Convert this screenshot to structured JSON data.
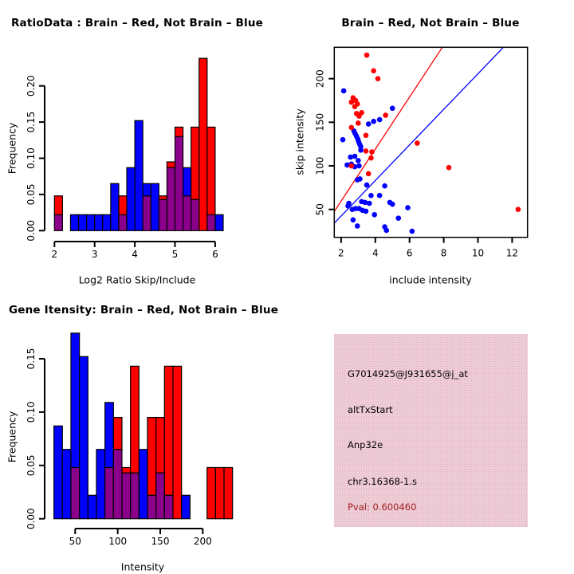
{
  "colors": {
    "red": "#FF0000",
    "blue": "#0000FF",
    "overlap": "#8B008B",
    "info_bg": "#EDC9D3",
    "pval_text": "#A01E1E",
    "axis": "#000000"
  },
  "chart_data": [
    {
      "type": "bar",
      "subtype": "overlaid-histogram",
      "title": "RatioData : Brain – Red, Not Brain – Blue",
      "xlabel": "Log2 Ratio Skip/Include",
      "ylabel": "Frequency",
      "x_ticks": [
        2,
        3,
        4,
        5,
        6
      ],
      "y_ticks": [
        0,
        0.05,
        0.1,
        0.15,
        0.2
      ],
      "xlim": [
        2,
        6.4
      ],
      "ylim": [
        0,
        0.24
      ],
      "bin_width": 0.2,
      "legend": {
        "red_series": "Brain",
        "blue_series": "Not Brain"
      },
      "bins": [
        [
          2.0,
          0.022,
          0.048
        ],
        [
          2.2,
          0,
          0
        ],
        [
          2.4,
          0.022,
          0
        ],
        [
          2.6,
          0.022,
          0
        ],
        [
          2.8,
          0.022,
          0
        ],
        [
          3.0,
          0.022,
          0
        ],
        [
          3.2,
          0.022,
          0
        ],
        [
          3.4,
          0.065,
          0
        ],
        [
          3.6,
          0.022,
          0.048
        ],
        [
          3.8,
          0.087,
          0
        ],
        [
          4.0,
          0.152,
          0
        ],
        [
          4.2,
          0.065,
          0.048
        ],
        [
          4.4,
          0.065,
          0
        ],
        [
          4.6,
          0.043,
          0.048
        ],
        [
          4.8,
          0.087,
          0.095
        ],
        [
          5.0,
          0.13,
          0.143
        ],
        [
          5.2,
          0.087,
          0.048
        ],
        [
          5.4,
          0.043,
          0.143
        ],
        [
          5.6,
          0,
          0.238
        ],
        [
          5.8,
          0.022,
          0.143
        ],
        [
          6.0,
          0.022,
          0
        ]
      ]
    },
    {
      "type": "scatter",
      "title": "Brain – Red, Not Brain – Blue",
      "xlabel": "include intensity",
      "ylabel": "skip intensity",
      "x_ticks": [
        2,
        4,
        6,
        8,
        10,
        12
      ],
      "y_ticks": [
        50,
        100,
        150,
        200
      ],
      "xlim": [
        1.6,
        12.9
      ],
      "ylim": [
        18,
        236
      ],
      "legend": {
        "red_series": "Brain",
        "blue_series": "Not Brain"
      },
      "red_points": [
        [
          3.5,
          227
        ],
        [
          3.9,
          209
        ],
        [
          4.15,
          200
        ],
        [
          2.7,
          178
        ],
        [
          2.85,
          175
        ],
        [
          2.6,
          173
        ],
        [
          2.95,
          171
        ],
        [
          2.8,
          168
        ],
        [
          3.2,
          161
        ],
        [
          2.9,
          160
        ],
        [
          3.05,
          157
        ],
        [
          4.6,
          158
        ],
        [
          3.0,
          149
        ],
        [
          2.6,
          144
        ],
        [
          3.45,
          135
        ],
        [
          3.45,
          117
        ],
        [
          3.8,
          116
        ],
        [
          3.75,
          109
        ],
        [
          2.6,
          100
        ],
        [
          3.6,
          91
        ],
        [
          6.45,
          126
        ],
        [
          8.3,
          98
        ],
        [
          12.35,
          50
        ]
      ],
      "blue_points": [
        [
          2.15,
          186
        ],
        [
          2.1,
          130
        ],
        [
          5.0,
          166
        ],
        [
          3.6,
          148
        ],
        [
          3.9,
          151
        ],
        [
          4.25,
          153
        ],
        [
          2.75,
          140
        ],
        [
          2.82,
          137
        ],
        [
          2.9,
          134
        ],
        [
          2.97,
          131
        ],
        [
          3.02,
          128
        ],
        [
          3.08,
          125
        ],
        [
          3.15,
          122
        ],
        [
          3.15,
          118
        ],
        [
          2.55,
          110
        ],
        [
          2.8,
          111
        ],
        [
          3.0,
          106
        ],
        [
          2.35,
          101
        ],
        [
          2.6,
          102
        ],
        [
          2.8,
          99
        ],
        [
          3.05,
          100
        ],
        [
          2.95,
          84
        ],
        [
          3.1,
          85
        ],
        [
          3.5,
          78
        ],
        [
          3.75,
          66
        ],
        [
          4.25,
          66
        ],
        [
          4.55,
          77
        ],
        [
          3.2,
          59
        ],
        [
          3.4,
          58
        ],
        [
          3.65,
          57
        ],
        [
          2.45,
          57
        ],
        [
          2.4,
          54
        ],
        [
          2.65,
          50
        ],
        [
          2.85,
          51
        ],
        [
          3.05,
          51
        ],
        [
          3.25,
          49
        ],
        [
          3.45,
          48
        ],
        [
          3.95,
          44
        ],
        [
          4.85,
          58
        ],
        [
          5.0,
          56
        ],
        [
          5.9,
          52
        ],
        [
          5.35,
          40
        ],
        [
          2.7,
          38
        ],
        [
          2.95,
          31
        ],
        [
          4.55,
          30
        ],
        [
          4.65,
          26
        ],
        [
          6.15,
          25
        ]
      ],
      "lines": [
        {
          "name": "brain-fit-line",
          "color": "#FF0000",
          "slope": 29.8,
          "intercept": 0
        },
        {
          "name": "notbrain-fit-line",
          "color": "#0000FF",
          "slope": 20.4,
          "intercept": 1.6
        }
      ]
    },
    {
      "type": "bar",
      "subtype": "overlaid-histogram",
      "title": "Gene Itensity: Brain – Red, Not Brain – Blue",
      "xlabel": "Intensity",
      "ylabel": "Frequency",
      "x_ticks": [
        50,
        100,
        150,
        200
      ],
      "y_ticks": [
        0,
        0.05,
        0.1,
        0.15
      ],
      "xlim": [
        25,
        235
      ],
      "ylim": [
        0,
        0.18
      ],
      "bin_width": 10,
      "legend": {
        "red_series": "Brain",
        "blue_series": "Not Brain"
      },
      "bins": [
        [
          25,
          0.087,
          0
        ],
        [
          35,
          0.065,
          0
        ],
        [
          45,
          0.174,
          0.048
        ],
        [
          55,
          0.152,
          0
        ],
        [
          65,
          0.022,
          0
        ],
        [
          75,
          0.065,
          0
        ],
        [
          85,
          0.109,
          0.048
        ],
        [
          95,
          0.065,
          0.095
        ],
        [
          105,
          0.043,
          0.048
        ],
        [
          115,
          0.043,
          0.143
        ],
        [
          125,
          0.065,
          0
        ],
        [
          135,
          0.022,
          0.095
        ],
        [
          145,
          0.043,
          0.095
        ],
        [
          155,
          0.022,
          0.143
        ],
        [
          165,
          0,
          0.143
        ],
        [
          175,
          0.022,
          0
        ],
        [
          185,
          0,
          0
        ],
        [
          195,
          0,
          0
        ],
        [
          205,
          0,
          0.048
        ],
        [
          215,
          0,
          0.048
        ],
        [
          225,
          0,
          0.048
        ]
      ]
    }
  ],
  "info_panel": {
    "lines": [
      "G7014925@J931655@j_at",
      "altTxStart",
      "Anp32e",
      "chr3.16368-1.s"
    ],
    "pval": "Pval: 0.600460"
  }
}
